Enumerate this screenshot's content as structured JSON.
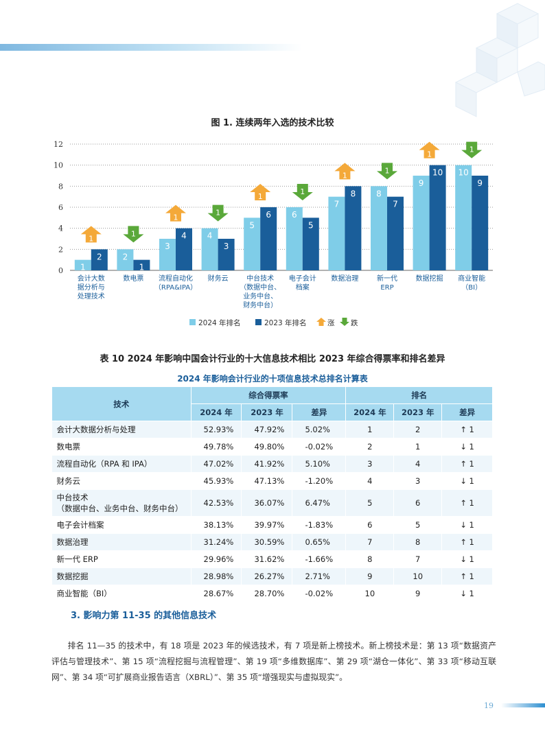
{
  "figure_title": "图 1. 连续两年入选的技术比较",
  "chart_data": {
    "type": "bar",
    "categories": [
      [
        "会计大数",
        "据分析与",
        "处理技术"
      ],
      [
        "数电票"
      ],
      [
        "流程自动化",
        "（RPA&IPA）"
      ],
      [
        "财务云"
      ],
      [
        "中台技术",
        "（数据中台、",
        "业务中台、",
        "财务中台）"
      ],
      [
        "电子会计",
        "档案"
      ],
      [
        "数据治理"
      ],
      [
        "新一代",
        "ERP"
      ],
      [
        "数据挖掘"
      ],
      [
        "商业智能",
        "（BI）"
      ]
    ],
    "series": [
      {
        "name": "2024 年排名",
        "values": [
          1,
          2,
          3,
          4,
          5,
          6,
          7,
          8,
          9,
          10
        ],
        "color": "#7fcde8"
      },
      {
        "name": "2023 年排名",
        "values": [
          2,
          1,
          4,
          3,
          6,
          5,
          8,
          7,
          10,
          9
        ],
        "color": "#1a5e9a"
      }
    ],
    "change": [
      "up",
      "down",
      "up",
      "down",
      "up",
      "down",
      "up",
      "down",
      "up",
      "down"
    ],
    "change_label": [
      "1",
      "1",
      "1",
      "1",
      "1",
      "1",
      "1",
      "1",
      "1",
      "1"
    ],
    "ylim": [
      0,
      12
    ],
    "yticks": [
      "0",
      "2",
      "4",
      "6",
      "8",
      "10",
      "12"
    ],
    "grid": true,
    "legend": {
      "up": "涨",
      "down": "跌",
      "up_color": "#f4a939",
      "down_color": "#5aa83a"
    },
    "legend_position": "bottom-center"
  },
  "table": {
    "title": "表 10 2024 年影响中国会计行业的十大信息技术相比 2023 年综合得票率和排名差异",
    "subtitle": "2024 年影响会计行业的十项信息技术总排名计算表",
    "header_tech": "技术",
    "header_score": "综合得票率",
    "header_rank": "排名",
    "sub_headers": [
      "2024 年",
      "2023 年",
      "差异",
      "2024 年",
      "2023 年",
      "差异"
    ],
    "rows": [
      {
        "name": "会计大数据分析与处理",
        "s24": "52.93%",
        "s23": "47.92%",
        "sd": "5.02%",
        "r24": "1",
        "r23": "2",
        "rd": "↑ 1"
      },
      {
        "name": "数电票",
        "s24": "49.78%",
        "s23": "49.80%",
        "sd": "-0.02%",
        "r24": "2",
        "r23": "1",
        "rd": "↓ 1"
      },
      {
        "name": "流程自动化（RPA 和 IPA）",
        "s24": "47.02%",
        "s23": "41.92%",
        "sd": "5.10%",
        "r24": "3",
        "r23": "4",
        "rd": "↑ 1"
      },
      {
        "name": "财务云",
        "s24": "45.93%",
        "s23": "47.13%",
        "sd": "-1.20%",
        "r24": "4",
        "r23": "3",
        "rd": "↓ 1"
      },
      {
        "name": "中台技术",
        "name2": "（数据中台、业务中台、财务中台）",
        "s24": "42.53%",
        "s23": "36.07%",
        "sd": "6.47%",
        "r24": "5",
        "r23": "6",
        "rd": "↑ 1"
      },
      {
        "name": "电子会计档案",
        "s24": "38.13%",
        "s23": "39.97%",
        "sd": "-1.83%",
        "r24": "6",
        "r23": "5",
        "rd": "↓ 1"
      },
      {
        "name": "数据治理",
        "s24": "31.24%",
        "s23": "30.59%",
        "sd": "0.65%",
        "r24": "7",
        "r23": "8",
        "rd": "↑ 1"
      },
      {
        "name": "新一代 ERP",
        "s24": "29.96%",
        "s23": "31.62%",
        "sd": "-1.66%",
        "r24": "8",
        "r23": "7",
        "rd": "↓ 1"
      },
      {
        "name": "数据挖掘",
        "s24": "28.98%",
        "s23": "26.27%",
        "sd": "2.71%",
        "r24": "9",
        "r23": "10",
        "rd": "↑ 1"
      },
      {
        "name": "商业智能（BI）",
        "s24": "28.67%",
        "s23": "28.70%",
        "sd": "-0.02%",
        "r24": "10",
        "r23": "9",
        "rd": "↓ 1"
      }
    ]
  },
  "section_heading": "3. 影响力第 11-35 的其他信息技术",
  "paragraph": "排名 11—35 的技术中，有 18 项是 2023 年的候选技术，有 7 项是新上榜技术。新上榜技术是：第 13 项“数据资产评估与管理技术”、第 15 项“流程挖掘与流程管理”、第 19 项“多维数据库”、第 29 项“湖仓一体化”、第 33 项“移动互联网”、第 34 项“可扩展商业报告语言（XBRL）”、第 35 项“增强现实与虚拟现实”。",
  "page_number": "19"
}
